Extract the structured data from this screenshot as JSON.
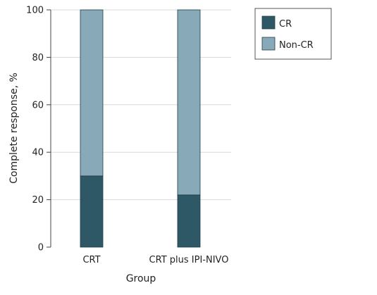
{
  "chart_data": {
    "type": "bar",
    "stacked": true,
    "categories": [
      "CRT",
      "CRT plus IPI-NIVO"
    ],
    "series": [
      {
        "name": "CR",
        "values": [
          30,
          22
        ],
        "color": "#2e5866"
      },
      {
        "name": "Non-CR",
        "values": [
          70,
          78
        ],
        "color": "#87a9b8"
      }
    ],
    "xlabel": "Group",
    "ylabel": "Complete response, %",
    "ylim": [
      0,
      100
    ],
    "yticks": [
      0,
      20,
      40,
      60,
      80,
      100
    ],
    "grid": "horizontal",
    "legend_position": "top-right",
    "colors": {
      "grid": "#d9d9d9",
      "axis": "#444444",
      "bar_border": "#1f3d47"
    }
  }
}
